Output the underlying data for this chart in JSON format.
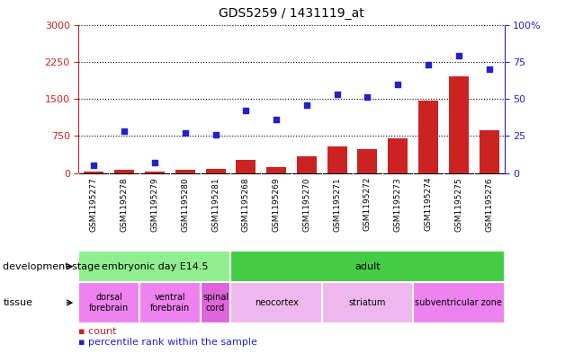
{
  "title": "GDS5259 / 1431119_at",
  "samples": [
    "GSM1195277",
    "GSM1195278",
    "GSM1195279",
    "GSM1195280",
    "GSM1195281",
    "GSM1195268",
    "GSM1195269",
    "GSM1195270",
    "GSM1195271",
    "GSM1195272",
    "GSM1195273",
    "GSM1195274",
    "GSM1195275",
    "GSM1195276"
  ],
  "counts": [
    30,
    60,
    25,
    70,
    80,
    270,
    120,
    330,
    540,
    490,
    700,
    1460,
    1950,
    870
  ],
  "percentiles": [
    5,
    28,
    7,
    27,
    26,
    42,
    36,
    46,
    53,
    51,
    60,
    73,
    79,
    70
  ],
  "ylim_left": [
    0,
    3000
  ],
  "ylim_right": [
    0,
    100
  ],
  "yticks_left": [
    0,
    750,
    1500,
    2250,
    3000
  ],
  "yticks_right": [
    0,
    25,
    50,
    75,
    100
  ],
  "dev_stage_groups": [
    {
      "label": "embryonic day E14.5",
      "start": 0,
      "end": 5,
      "color": "#90EE90"
    },
    {
      "label": "adult",
      "start": 5,
      "end": 14,
      "color": "#44CC44"
    }
  ],
  "tissue_groups": [
    {
      "label": "dorsal\nforebrain",
      "start": 0,
      "end": 2,
      "color": "#EE82EE"
    },
    {
      "label": "ventral\nforebrain",
      "start": 2,
      "end": 4,
      "color": "#EE82EE"
    },
    {
      "label": "spinal\ncord",
      "start": 4,
      "end": 5,
      "color": "#DD66DD"
    },
    {
      "label": "neocortex",
      "start": 5,
      "end": 8,
      "color": "#EEB8EE"
    },
    {
      "label": "striatum",
      "start": 8,
      "end": 11,
      "color": "#EEB8EE"
    },
    {
      "label": "subventricular zone",
      "start": 11,
      "end": 14,
      "color": "#EE82EE"
    }
  ],
  "bar_color": "#CC2222",
  "dot_color": "#2222CC",
  "bg_color": "#C8C8C8",
  "plot_bg": "#FFFFFF",
  "left_axis_color": "#CC2222",
  "right_axis_color": "#2222CC",
  "grid_color": "#000000",
  "border_color": "#000000"
}
